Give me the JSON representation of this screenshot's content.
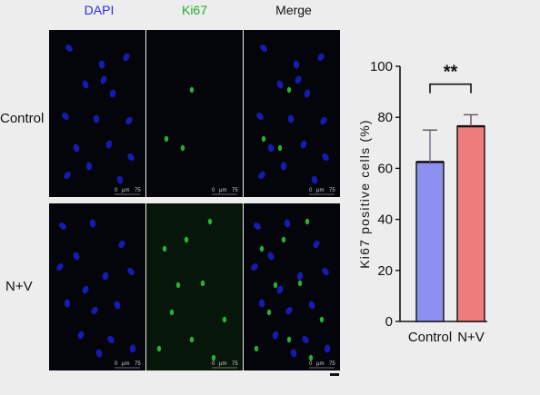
{
  "figure": {
    "columns": [
      {
        "label": "DAPI",
        "color": "#2a2ae0"
      },
      {
        "label": "Ki67",
        "color": "#1faa2a"
      },
      {
        "label": "Merge",
        "color": "#111111"
      }
    ],
    "rows": [
      {
        "label": "Control"
      },
      {
        "label": "N+V"
      }
    ],
    "scale_labels": {
      "zero": "0",
      "unit": "μm",
      "length": "75"
    }
  },
  "chart_data": {
    "type": "bar",
    "categories": [
      "Control",
      "N+V"
    ],
    "values": [
      62.5,
      76.5
    ],
    "errors": [
      12.5,
      4.5
    ],
    "colors": [
      "#8e90f0",
      "#ef7c7c"
    ],
    "ylabel": "Ki67 positive cells (%)",
    "ylim": [
      0,
      100
    ],
    "yticks": [
      "0",
      "20",
      "40",
      "60",
      "80",
      "100"
    ],
    "significance": "**"
  }
}
